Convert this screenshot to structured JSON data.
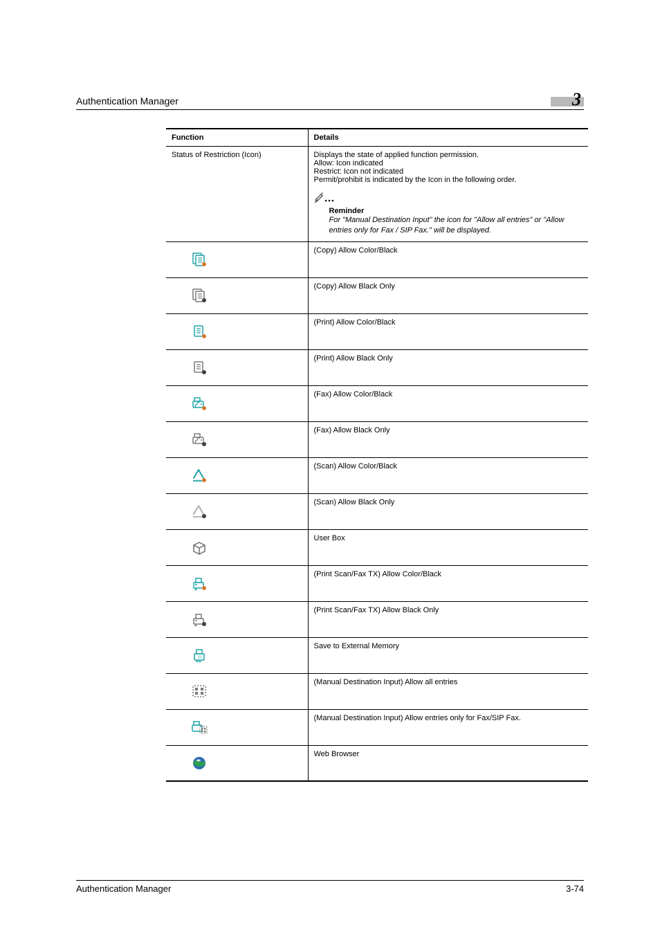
{
  "header": {
    "title": "Authentication Manager",
    "chapter": "3"
  },
  "table": {
    "columns": {
      "func": "Function",
      "det": "Details"
    },
    "status_row": {
      "func": "Status of Restriction (Icon)",
      "det_lines": [
        "Displays the state of applied function permission.",
        "Allow: Icon indicated",
        "Restrict: Icon not indicated",
        "Permit/prohibit is indicated by the Icon in the following order."
      ],
      "reminder_label": "Reminder",
      "reminder_text": "For \"Manual Destination Input\" the icon for \"Allow all entries\" or \"Allow entries only for Fax / SIP Fax.\" will be displayed."
    },
    "icon_rows": [
      {
        "icon": "copy-color",
        "label": "(Copy) Allow Color/Black"
      },
      {
        "icon": "copy-black",
        "label": "(Copy) Allow Black Only"
      },
      {
        "icon": "print-color",
        "label": "(Print) Allow Color/Black"
      },
      {
        "icon": "print-black",
        "label": "(Print) Allow Black Only"
      },
      {
        "icon": "fax-color",
        "label": "(Fax) Allow Color/Black"
      },
      {
        "icon": "fax-black",
        "label": "(Fax) Allow Black Only"
      },
      {
        "icon": "scan-color",
        "label": "(Scan) Allow Color/Black"
      },
      {
        "icon": "scan-black",
        "label": "(Scan) Allow Black Only"
      },
      {
        "icon": "userbox",
        "label": "User Box"
      },
      {
        "icon": "pscanfax-color",
        "label": "(Print Scan/Fax TX) Allow Color/Black"
      },
      {
        "icon": "pscanfax-black",
        "label": "(Print Scan/Fax TX) Allow Black Only"
      },
      {
        "icon": "save-ext",
        "label": "Save to External Memory"
      },
      {
        "icon": "manual-all",
        "label": "(Manual Destination Input) Allow all entries"
      },
      {
        "icon": "manual-fax",
        "label": "(Manual Destination Input) Allow entries only for Fax/SIP Fax."
      },
      {
        "icon": "web-browser",
        "label": "Web Browser"
      }
    ]
  },
  "footer": {
    "left": "Authentication Manager",
    "right": "3-74"
  },
  "colors": {
    "teal": "#1fa3a8",
    "gray": "#7a7a7a",
    "grayLight": "#b0b0b0",
    "pen": "#5a5a5a",
    "orangeDot": "#f08030",
    "blue": "#2b6db3",
    "green": "#2e9e4f"
  }
}
